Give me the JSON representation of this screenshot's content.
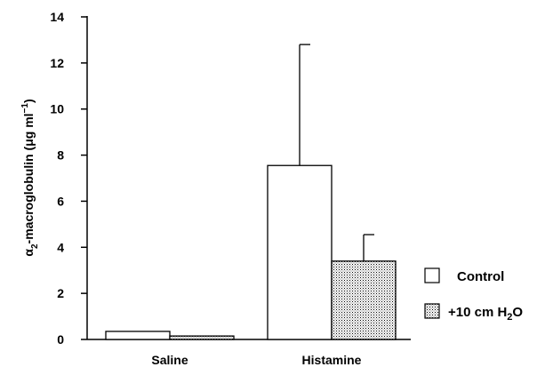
{
  "chart_data": {
    "type": "bar",
    "ylabel_parts": {
      "alpha": "α",
      "sub2": "2",
      "text": "-macroglobulin (μg ml",
      "sup": "−1",
      "close": ")"
    },
    "ylim": [
      0,
      14
    ],
    "yticks": [
      0,
      2,
      4,
      6,
      8,
      10,
      12,
      14
    ],
    "categories": [
      "Saline",
      "Histamine"
    ],
    "series": [
      {
        "name": "Control",
        "values": [
          0.35,
          7.55
        ],
        "errors": [
          null,
          5.25
        ],
        "pattern": "open"
      },
      {
        "name": "+10 cm H₂O",
        "values": [
          0.15,
          3.4
        ],
        "errors": [
          null,
          1.15
        ],
        "pattern": "dotted"
      }
    ],
    "legend": {
      "position": "right",
      "entries": [
        {
          "label": "Control"
        },
        {
          "label_main": "+10 cm H",
          "label_sub": "2",
          "label_end": "O"
        }
      ]
    }
  }
}
